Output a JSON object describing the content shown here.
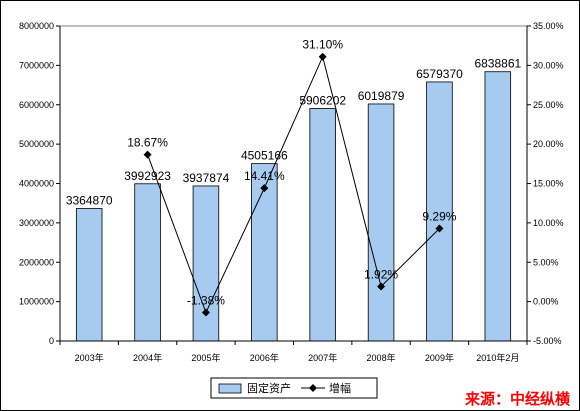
{
  "chart_data": {
    "type": "bar+line",
    "categories": [
      "2003年",
      "2004年",
      "2005年",
      "2006年",
      "2007年",
      "2008年",
      "2009年",
      "2010年2月"
    ],
    "series": [
      {
        "name": "固定资产",
        "type": "bar",
        "axis": "left",
        "values": [
          3364870,
          3992923,
          3937874,
          4505166,
          5906202,
          6019879,
          6579370,
          6838861
        ],
        "labels": [
          "3364870",
          "3992923",
          "3937874",
          "4505166",
          "5906202",
          "6019879",
          "6579370",
          "6838861"
        ],
        "color": "#a6caf0"
      },
      {
        "name": "增幅",
        "type": "line",
        "axis": "right",
        "values": [
          null,
          18.67,
          -1.38,
          14.41,
          31.1,
          1.92,
          9.29,
          null
        ],
        "labels": [
          "",
          "18.67%",
          "-1.38%",
          "14.41%",
          "31.10%",
          "1.92%",
          "9.29%",
          ""
        ],
        "color": "#000000"
      }
    ],
    "left_axis": {
      "min": 0,
      "max": 8000000,
      "step": 1000000,
      "ticks": [
        "0",
        "1000000",
        "2000000",
        "3000000",
        "4000000",
        "5000000",
        "6000000",
        "7000000",
        "8000000"
      ]
    },
    "right_axis": {
      "min": -5,
      "max": 35,
      "step": 5,
      "ticks": [
        "-5.00%",
        "0.00%",
        "5.00%",
        "10.00%",
        "15.00%",
        "20.00%",
        "25.00%",
        "30.00%",
        "35.00%"
      ]
    },
    "legend": {
      "position": "bottom"
    },
    "grid": false
  },
  "source": "来源：中经纵横"
}
